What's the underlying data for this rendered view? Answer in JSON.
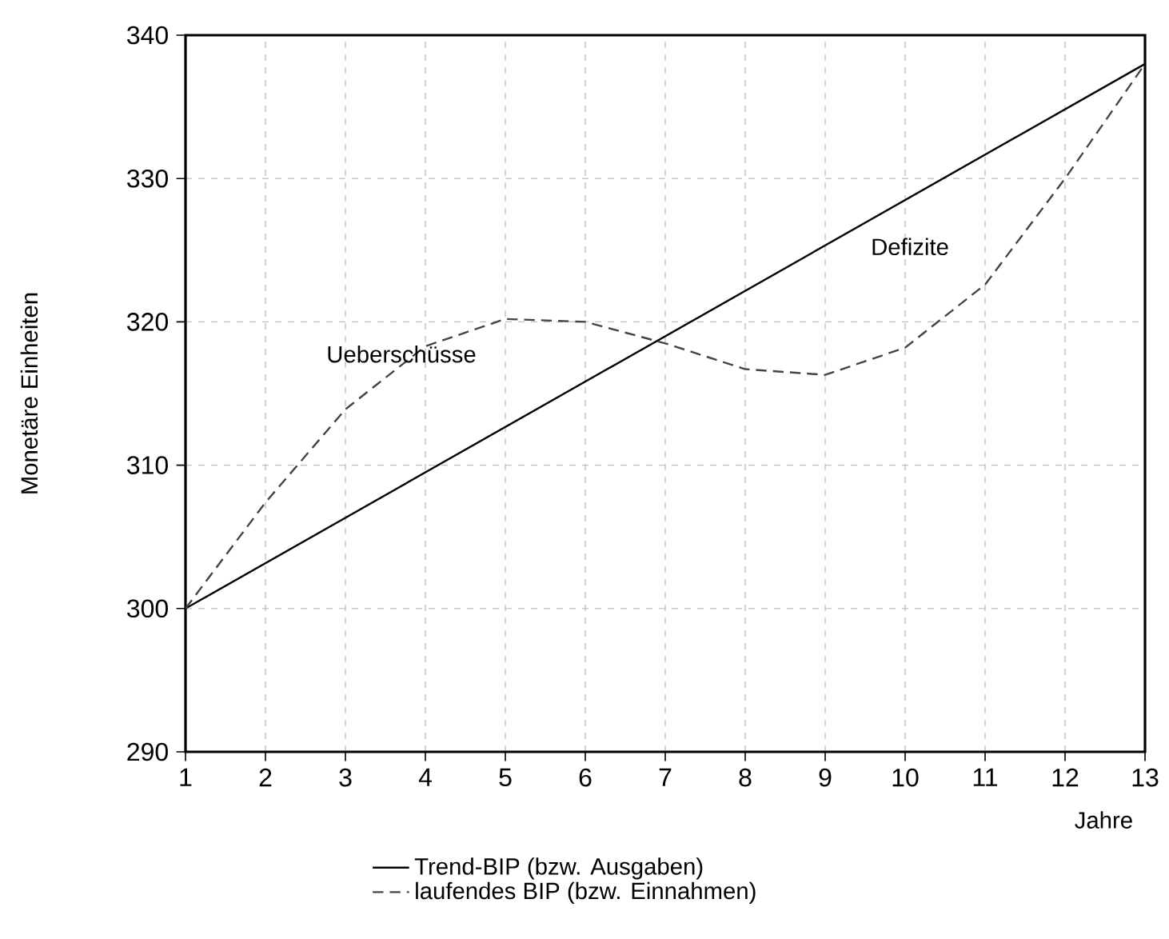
{
  "chart_data": {
    "type": "line",
    "xlabel": "Jahre",
    "ylabel": "Monetäre Einheiten",
    "x": [
      1,
      2,
      3,
      4,
      5,
      6,
      7,
      8,
      9,
      10,
      11,
      12,
      13
    ],
    "series": [
      {
        "name": "Trend-BIP (bzw. Ausgaben)",
        "color": "#000000",
        "line_style": "solid",
        "x": [
          1,
          13
        ],
        "values": [
          300,
          338
        ]
      },
      {
        "name": "laufendes BIP (bzw. Einnahmen)",
        "color": "#444444",
        "line_style": "dashed",
        "values": [
          300,
          307.4,
          313.9,
          318.3,
          320.2,
          320.0,
          318.5,
          316.7,
          316.3,
          318.2,
          322.6,
          330.0,
          338
        ]
      }
    ],
    "xlim": [
      1,
      13
    ],
    "xticks": [
      1,
      2,
      3,
      4,
      5,
      6,
      7,
      8,
      9,
      10,
      11,
      12,
      13
    ],
    "ylim": [
      290,
      340
    ],
    "yticks": [
      290,
      300,
      310,
      320,
      330,
      340
    ],
    "grid": true,
    "legend": "bottom",
    "annotations": [
      "Ueberschüsse",
      "Defizite"
    ]
  }
}
